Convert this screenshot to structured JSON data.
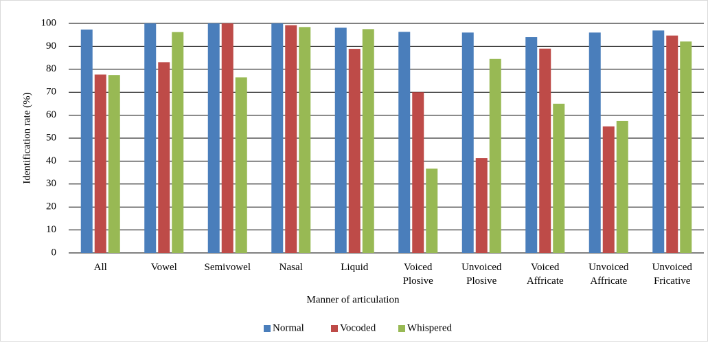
{
  "chart_data": {
    "type": "bar",
    "categories": [
      "All",
      "Vowel",
      "Semivowel",
      "Nasal",
      "Liquid",
      "Voiced Plosive",
      "Unvoiced Plosive",
      "Voiced Affricate",
      "Unvoiced Affricate",
      "Unvoiced Fricative"
    ],
    "series": [
      {
        "name": "Normal",
        "color": "#4a7ebb",
        "values": [
          97.3,
          100,
          100,
          100,
          98.1,
          96.3,
          96,
          94,
          96,
          96.9
        ]
      },
      {
        "name": "Vocoded",
        "color": "#be4b48",
        "values": [
          77.7,
          83.1,
          100,
          99.2,
          88.9,
          70,
          41.3,
          89,
          55.1,
          94.7
        ]
      },
      {
        "name": "Whispered",
        "color": "#98b954",
        "values": [
          77.5,
          96.2,
          76.5,
          98.4,
          97.5,
          36.7,
          84.5,
          65,
          57.5,
          92.1
        ]
      }
    ],
    "xlabel": "Manner of articulation",
    "ylabel": "Identification rate (%)",
    "ylim": [
      0,
      100
    ],
    "yticks": [
      0,
      10,
      20,
      30,
      40,
      50,
      60,
      70,
      80,
      90,
      100
    ],
    "grid": true,
    "legend": "bottom"
  }
}
